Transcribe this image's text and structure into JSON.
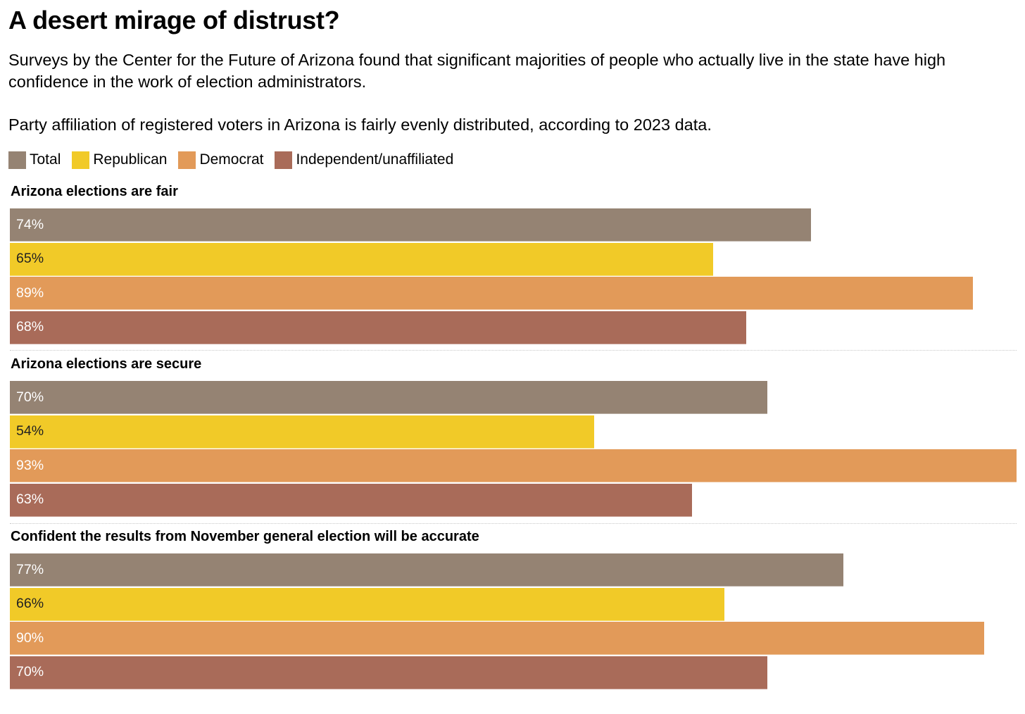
{
  "header": {
    "title": "A desert mirage of distrust?",
    "subtitle": "Surveys by the Center for the Future of Arizona found that significant majorities of people who actually live in the state have high confidence in the work of election administrators.",
    "note": "Party affiliation of registered voters in Arizona is fairly evenly distributed, according to 2023 data."
  },
  "legend": [
    {
      "label": "Total",
      "color": "#958373"
    },
    {
      "label": "Republican",
      "color": "#f1ca28"
    },
    {
      "label": "Democrat",
      "color": "#e29a59"
    },
    {
      "label": "Independent/unaffiliated",
      "color": "#a96b59"
    }
  ],
  "chart_data": {
    "type": "bar",
    "orientation": "horizontal",
    "title": "A desert mirage of distrust?",
    "xlim": [
      0,
      93
    ],
    "categories": [
      "Arizona elections are fair",
      "Arizona elections are secure",
      "Confident the results from November general election will be accurate"
    ],
    "series": [
      {
        "name": "Total",
        "values": [
          74,
          70,
          77
        ],
        "labels": [
          "74%",
          "70%",
          "77%"
        ]
      },
      {
        "name": "Republican",
        "values": [
          65,
          54,
          66
        ],
        "labels": [
          "65%",
          "54%",
          "66%"
        ]
      },
      {
        "name": "Democrat",
        "values": [
          89,
          93,
          90
        ],
        "labels": [
          "89%",
          "93%",
          "90%"
        ]
      },
      {
        "name": "Independent/unaffiliated",
        "values": [
          68,
          63,
          70
        ],
        "labels": [
          "68%",
          "63%",
          "70%"
        ]
      }
    ]
  }
}
